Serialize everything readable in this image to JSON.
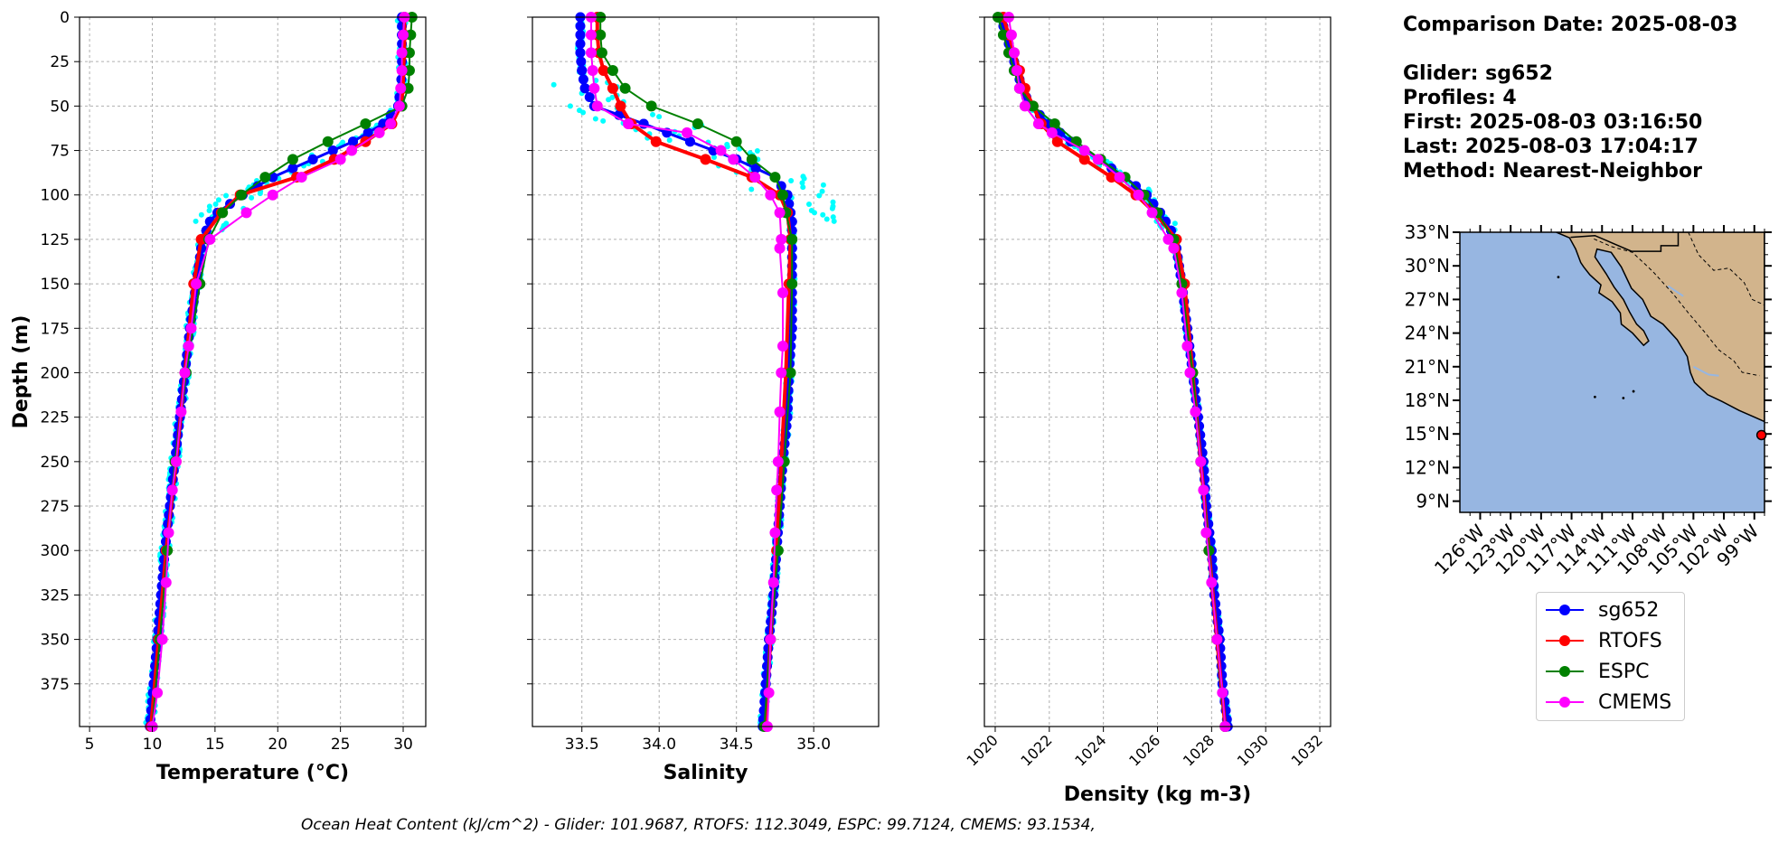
{
  "chart_data": [
    {
      "type": "line",
      "panel": "temperature",
      "xlabel": "Temperature (°C)",
      "xlim": [
        4.2,
        31.8
      ],
      "ylim": [
        399,
        0
      ],
      "xticks": [
        5,
        10,
        15,
        20,
        25,
        30
      ],
      "ylabel": "Depth (m)",
      "yticks": [
        0,
        25,
        50,
        75,
        100,
        125,
        150,
        175,
        200,
        225,
        250,
        275,
        300,
        325,
        350,
        375
      ],
      "grid": true,
      "series": [
        {
          "name": "sg652",
          "color": "#0000ff",
          "depth": [
            0,
            10,
            20,
            30,
            40,
            50,
            60,
            70,
            80,
            90,
            100,
            110,
            115,
            120,
            125,
            130,
            150,
            175,
            200,
            225,
            250,
            275,
            300,
            325,
            350,
            375,
            399
          ],
          "values": [
            29.9,
            29.9,
            29.9,
            29.9,
            29.8,
            29.6,
            28.4,
            26.0,
            22.8,
            19.6,
            17.2,
            15.2,
            14.6,
            14.3,
            14.1,
            13.9,
            13.5,
            13.0,
            12.6,
            12.2,
            11.8,
            11.4,
            11.0,
            10.7,
            10.4,
            10.1,
            9.8
          ]
        },
        {
          "name": "RTOFS",
          "color": "#ff0000",
          "depth": [
            0,
            10,
            20,
            30,
            40,
            50,
            60,
            70,
            80,
            90,
            100,
            110,
            125,
            150,
            200,
            250,
            300,
            350,
            399
          ],
          "values": [
            30.1,
            30.1,
            30.1,
            30.0,
            30.0,
            29.8,
            29.1,
            27.0,
            24.5,
            21.5,
            17.0,
            15.5,
            13.9,
            13.3,
            12.6,
            11.9,
            11.1,
            10.5,
            9.9
          ]
        },
        {
          "name": "ESPC",
          "color": "#008000",
          "depth": [
            0,
            10,
            20,
            30,
            40,
            50,
            60,
            70,
            80,
            90,
            100,
            110,
            125,
            150,
            200,
            250,
            300,
            350,
            399
          ],
          "values": [
            30.7,
            30.6,
            30.5,
            30.5,
            30.4,
            29.9,
            27.0,
            24.0,
            21.2,
            19.0,
            17.1,
            15.6,
            14.5,
            13.8,
            12.7,
            11.8,
            11.2,
            10.6,
            10.0
          ]
        },
        {
          "name": "CMEMS",
          "color": "#ff00ff",
          "depth": [
            0,
            10,
            20,
            30,
            40,
            50,
            60,
            65,
            75,
            80,
            90,
            100,
            110,
            125,
            150,
            175,
            185,
            200,
            222,
            250,
            266,
            290,
            318,
            350,
            380,
            399
          ],
          "values": [
            30.1,
            30.0,
            29.9,
            29.9,
            29.8,
            29.7,
            29.0,
            28.1,
            25.9,
            25.0,
            21.9,
            19.6,
            17.5,
            14.6,
            13.5,
            13.1,
            12.9,
            12.6,
            12.3,
            11.9,
            11.6,
            11.3,
            11.1,
            10.8,
            10.4,
            10.0
          ]
        }
      ]
    },
    {
      "type": "line",
      "panel": "salinity",
      "xlabel": "Salinity",
      "xlim": [
        33.18,
        35.42
      ],
      "ylim": [
        399,
        0
      ],
      "xticks": [
        33.5,
        34.0,
        34.5,
        35.0
      ],
      "grid": true,
      "series": [
        {
          "name": "sg652",
          "color": "#0000ff",
          "depth": [
            0,
            10,
            20,
            30,
            40,
            50,
            60,
            70,
            80,
            90,
            100,
            110,
            115,
            120,
            125,
            130,
            150,
            175,
            200,
            225,
            250,
            275,
            300,
            325,
            350,
            375,
            399
          ],
          "values": [
            33.49,
            33.49,
            33.49,
            33.5,
            33.52,
            33.58,
            33.9,
            34.2,
            34.5,
            34.75,
            34.83,
            34.85,
            34.86,
            34.86,
            34.86,
            34.86,
            34.86,
            34.86,
            34.84,
            34.83,
            34.8,
            34.78,
            34.76,
            34.74,
            34.71,
            34.69,
            34.67
          ]
        },
        {
          "name": "RTOFS",
          "color": "#ff0000",
          "depth": [
            0,
            10,
            20,
            30,
            40,
            50,
            60,
            70,
            80,
            90,
            100,
            110,
            125,
            150,
            200,
            250,
            300,
            350,
            399
          ],
          "values": [
            33.6,
            33.6,
            33.61,
            33.64,
            33.7,
            33.75,
            33.82,
            33.98,
            34.3,
            34.6,
            34.78,
            34.83,
            34.85,
            34.84,
            34.82,
            34.79,
            34.76,
            34.72,
            34.69
          ]
        },
        {
          "name": "ESPC",
          "color": "#008000",
          "depth": [
            0,
            10,
            20,
            30,
            40,
            50,
            60,
            70,
            80,
            90,
            100,
            110,
            125,
            150,
            200,
            250,
            300,
            350,
            399
          ],
          "values": [
            33.62,
            33.62,
            33.63,
            33.7,
            33.78,
            33.95,
            34.25,
            34.5,
            34.6,
            34.75,
            34.8,
            34.82,
            34.86,
            34.86,
            34.85,
            34.81,
            34.77,
            34.72,
            34.68
          ]
        },
        {
          "name": "CMEMS",
          "color": "#ff00ff",
          "depth": [
            0,
            10,
            20,
            30,
            40,
            50,
            60,
            65,
            75,
            80,
            90,
            100,
            110,
            125,
            130,
            155,
            185,
            200,
            222,
            250,
            266,
            290,
            318,
            350,
            380,
            399
          ],
          "values": [
            33.56,
            33.56,
            33.56,
            33.57,
            33.58,
            33.6,
            33.8,
            34.18,
            34.4,
            34.48,
            34.62,
            34.72,
            34.78,
            34.79,
            34.78,
            34.8,
            34.8,
            34.79,
            34.78,
            34.77,
            34.76,
            34.75,
            34.74,
            34.72,
            34.71,
            34.7
          ]
        }
      ]
    },
    {
      "type": "line",
      "panel": "density",
      "xlabel": "Density (kg m-3)",
      "xlim": [
        1019.6,
        1032.4
      ],
      "ylim": [
        399,
        0
      ],
      "xticks": [
        1020,
        1022,
        1024,
        1026,
        1028,
        1030,
        1032
      ],
      "grid": true,
      "series": [
        {
          "name": "sg652",
          "color": "#0000ff",
          "depth": [
            0,
            10,
            20,
            30,
            40,
            50,
            60,
            70,
            80,
            90,
            100,
            110,
            115,
            120,
            125,
            130,
            150,
            175,
            200,
            225,
            250,
            275,
            300,
            325,
            350,
            375,
            399
          ],
          "values": [
            1020.2,
            1020.4,
            1020.6,
            1020.8,
            1021.0,
            1021.3,
            1022.0,
            1022.8,
            1023.8,
            1024.8,
            1025.6,
            1026.1,
            1026.3,
            1026.5,
            1026.6,
            1026.7,
            1026.9,
            1027.1,
            1027.3,
            1027.5,
            1027.7,
            1027.8,
            1028.0,
            1028.1,
            1028.3,
            1028.4,
            1028.6
          ]
        },
        {
          "name": "RTOFS",
          "color": "#ff0000",
          "depth": [
            0,
            10,
            20,
            30,
            40,
            50,
            60,
            70,
            80,
            90,
            100,
            110,
            125,
            150,
            200,
            250,
            300,
            350,
            399
          ],
          "values": [
            1020.3,
            1020.5,
            1020.7,
            1020.9,
            1021.1,
            1021.4,
            1021.7,
            1022.3,
            1023.3,
            1024.3,
            1025.2,
            1025.9,
            1026.7,
            1027.0,
            1027.3,
            1027.6,
            1027.9,
            1028.2,
            1028.5
          ]
        },
        {
          "name": "ESPC",
          "color": "#008000",
          "depth": [
            0,
            10,
            20,
            30,
            40,
            50,
            60,
            70,
            80,
            90,
            100,
            110,
            125,
            150,
            200,
            250,
            300,
            350,
            399
          ],
          "values": [
            1020.1,
            1020.3,
            1020.5,
            1020.7,
            1020.9,
            1021.4,
            1022.2,
            1023.0,
            1023.9,
            1024.8,
            1025.5,
            1026.0,
            1026.6,
            1026.9,
            1027.3,
            1027.6,
            1027.9,
            1028.2,
            1028.5
          ]
        },
        {
          "name": "CMEMS",
          "color": "#ff00ff",
          "depth": [
            0,
            10,
            20,
            30,
            40,
            50,
            60,
            65,
            75,
            80,
            90,
            100,
            110,
            125,
            130,
            155,
            185,
            200,
            222,
            250,
            266,
            290,
            318,
            350,
            380,
            399
          ],
          "values": [
            1020.5,
            1020.6,
            1020.7,
            1020.8,
            1020.9,
            1021.1,
            1021.6,
            1022.1,
            1023.3,
            1023.8,
            1024.6,
            1025.3,
            1025.8,
            1026.4,
            1026.6,
            1026.9,
            1027.1,
            1027.2,
            1027.4,
            1027.6,
            1027.7,
            1027.8,
            1028.0,
            1028.2,
            1028.4,
            1028.5
          ]
        }
      ]
    }
  ],
  "info": {
    "comparison_date": "Comparison Date: 2025-08-03",
    "glider": "Glider: sg652",
    "profiles": "Profiles: 4",
    "first": "First: 2025-08-03 03:16:50",
    "last": "Last: 2025-08-03 17:04:17",
    "method": "Method: Nearest-Neighbor"
  },
  "map": {
    "lon_range": [
      -128,
      -98
    ],
    "lat_range": [
      8,
      33
    ],
    "lat_ticks": [
      "33°N",
      "30°N",
      "27°N",
      "24°N",
      "21°N",
      "18°N",
      "15°N",
      "12°N",
      "9°N"
    ],
    "lon_ticks": [
      "126°W",
      "123°W",
      "120°W",
      "117°W",
      "114°W",
      "111°W",
      "108°W",
      "105°W",
      "102°W",
      "99°W"
    ],
    "ocean_color": "#97b6e1",
    "land_color": "#d2b48c",
    "marker": {
      "lon": -98.3,
      "lat": 14.9,
      "color": "#ff0000"
    }
  },
  "legend": [
    {
      "label": "sg652",
      "color": "#0000ff"
    },
    {
      "label": "RTOFS",
      "color": "#ff0000"
    },
    {
      "label": "ESPC",
      "color": "#008000"
    },
    {
      "label": "CMEMS",
      "color": "#ff00ff"
    }
  ],
  "footer": "Ocean Heat Content (kJ/cm^2) - Glider: 101.9687,  RTOFS: 112.3049,  ESPC: 99.7124,  CMEMS: 93.1534,"
}
